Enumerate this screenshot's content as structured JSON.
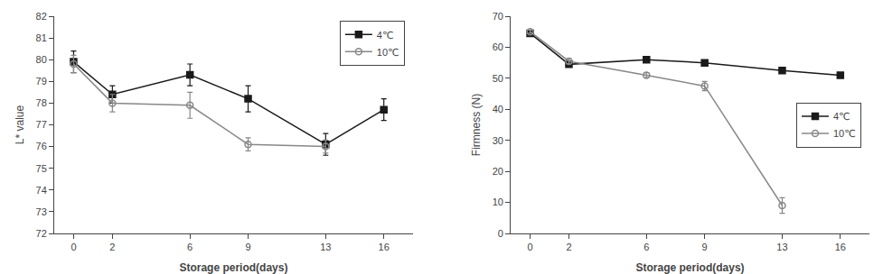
{
  "chart_data": [
    {
      "type": "line",
      "xlabel": "Storage period(days)",
      "ylabel": "L* value",
      "x": [
        0,
        2,
        6,
        9,
        13,
        16
      ],
      "series": [
        {
          "name": "4℃",
          "color": "#1a1a1a",
          "marker": "square",
          "line_style": "solid",
          "values": [
            79.9,
            78.4,
            79.3,
            78.2,
            76.1,
            77.7
          ],
          "errors": [
            0.5,
            0.4,
            0.5,
            0.6,
            0.5,
            0.5
          ]
        },
        {
          "name": "10℃",
          "color": "#888888",
          "marker": "circle-open",
          "line_style": "solid",
          "values": [
            79.8,
            78.0,
            77.9,
            76.1,
            76.0,
            null
          ],
          "errors": [
            0.4,
            0.4,
            0.6,
            0.3,
            0.3,
            null
          ]
        }
      ],
      "xlim": [
        -1,
        17.5
      ],
      "xticks": [
        0,
        2,
        6,
        9,
        13,
        16
      ],
      "ylim": [
        72,
        82
      ],
      "yticks": [
        72,
        73,
        74,
        75,
        76,
        77,
        78,
        79,
        80,
        81,
        82
      ],
      "grid": false,
      "legend": "upper right"
    },
    {
      "type": "line",
      "xlabel": "Storage period(days)",
      "ylabel": "Firmness (N)",
      "x": [
        0,
        2,
        6,
        9,
        13,
        16
      ],
      "series": [
        {
          "name": "4℃",
          "color": "#1a1a1a",
          "marker": "square",
          "line_style": "solid",
          "values": [
            64.5,
            54.5,
            56.0,
            55.0,
            52.5,
            51.0
          ],
          "errors": [
            0.8,
            0.8,
            0.8,
            0.8,
            0.8,
            0.8
          ]
        },
        {
          "name": "10℃",
          "color": "#888888",
          "marker": "circle-open",
          "line_style": "solid",
          "values": [
            65.0,
            55.5,
            51.0,
            47.5,
            9.0,
            null
          ],
          "errors": [
            0.5,
            0.8,
            0.8,
            1.5,
            2.5,
            null
          ]
        }
      ],
      "xlim": [
        -1,
        17.5
      ],
      "xticks": [
        0,
        2,
        6,
        9,
        13,
        16
      ],
      "ylim": [
        0,
        70
      ],
      "yticks": [
        0,
        10,
        20,
        30,
        40,
        50,
        60,
        70
      ],
      "grid": false,
      "legend": "center right"
    }
  ]
}
